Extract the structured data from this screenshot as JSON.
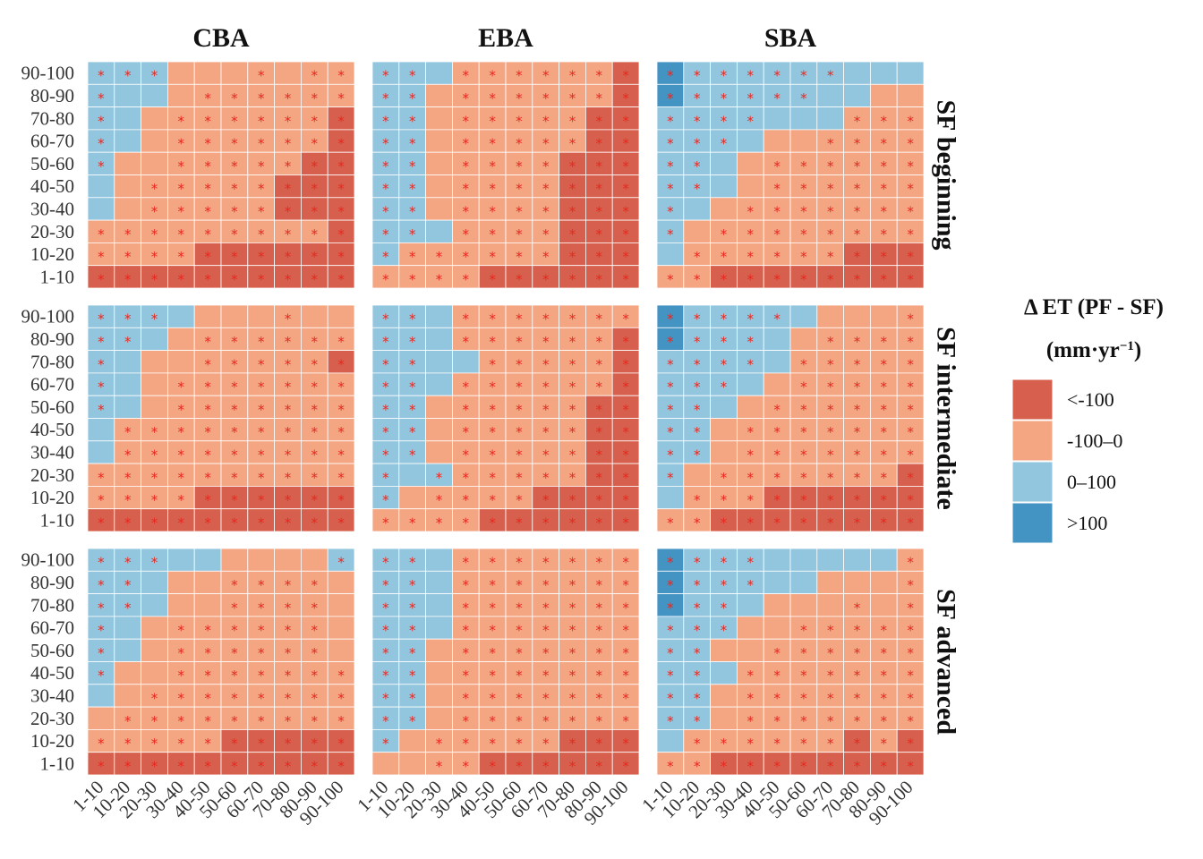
{
  "chart_data": {
    "type": "heatmap",
    "columns": [
      "CBA",
      "EBA",
      "SBA"
    ],
    "rows": [
      "SF beginning",
      "SF intermediate",
      "SF advanced"
    ],
    "x_categories": [
      "1-10",
      "10-20",
      "20-30",
      "30-40",
      "40-50",
      "50-60",
      "60-70",
      "70-80",
      "80-90",
      "90-100"
    ],
    "y_categories": [
      "90-100",
      "80-90",
      "70-80",
      "60-70",
      "50-60",
      "40-50",
      "30-40",
      "20-30",
      "10-20",
      "1-10"
    ],
    "legend": {
      "title_line1": "Δ ET (PF - SF)",
      "title_line2": "(mm·yr",
      "title_sup": "−1",
      "title_close": ")",
      "bins": [
        {
          "label": "<-100",
          "color": "#d6604d"
        },
        {
          "label": "-100–0",
          "color": "#f4a582"
        },
        {
          "label": "0–100",
          "color": "#92c5de"
        },
        {
          "label": ">100",
          "color": "#4393c3"
        }
      ]
    },
    "significance_marker": "*",
    "encoding_note": "grid rows listed from 90-100 (top) to 1-10 (bottom); digit = bin index (0:<-100, 1:-100–0, 2:0–100, 3:>100); sig 1 = marked with *",
    "panels": [
      {
        "column": "CBA",
        "row": "SF beginning",
        "bins": [
          "2221111111",
          "2221111111",
          "2211111110",
          "2211111110",
          "2111111100",
          "2111111000",
          "2111111000",
          "1111111110",
          "1111000000",
          "0000000000"
        ],
        "sig": [
          "1110001011",
          "1000111111",
          "1001111111",
          "1001111111",
          "1001111111",
          "0011111111",
          "0011111111",
          "1111111111",
          "1111111111",
          "1111111111"
        ]
      },
      {
        "column": "EBA",
        "row": "SF beginning",
        "bins": [
          "2221111110",
          "2211111110",
          "2211111100",
          "2211111100",
          "2211111000",
          "2211111000",
          "2211111000",
          "2221111000",
          "2111111000",
          "1111000000"
        ],
        "sig": [
          "1101111111",
          "1101111111",
          "1101111111",
          "1101111111",
          "1101111111",
          "1101111111",
          "1101111111",
          "1101111111",
          "1111111111",
          "1111111111"
        ]
      },
      {
        "column": "SBA",
        "row": "SF beginning",
        "bins": [
          "3222222222",
          "3222222211",
          "2222222111",
          "2222111111",
          "2221111111",
          "2221111111",
          "2211111111",
          "2111111111",
          "2111111000",
          "1100000000"
        ],
        "sig": [
          "1111111000",
          "1111110000",
          "1111000111",
          "1110001111",
          "1100111111",
          "1100111111",
          "1001111111",
          "1011111111",
          "0111111111",
          "1111111111"
        ]
      },
      {
        "column": "CBA",
        "row": "SF intermediate",
        "bins": [
          "2222111111",
          "2221111111",
          "2211111110",
          "2211111111",
          "2211111111",
          "2111111111",
          "2111111111",
          "1111111111",
          "1111000000",
          "0000000000"
        ],
        "sig": [
          "1110000100",
          "1100111111",
          "1000111111",
          "1001111111",
          "1001111111",
          "0111111111",
          "0111111111",
          "1111111111",
          "1111111111",
          "1111111111"
        ]
      },
      {
        "column": "EBA",
        "row": "SF intermediate",
        "bins": [
          "2221111111",
          "2221111110",
          "2222111110",
          "2221111110",
          "2211111100",
          "2211111100",
          "2211111100",
          "2221111100",
          "2111110000",
          "1111000000"
        ],
        "sig": [
          "1101111111",
          "1101111111",
          "1100111111",
          "1101111111",
          "1101111111",
          "1101111111",
          "1101111111",
          "1011111111",
          "1011111111",
          "1111111111"
        ]
      },
      {
        "column": "SBA",
        "row": "SF intermediate",
        "bins": [
          "3222221111",
          "3222211111",
          "2222211111",
          "2222111111",
          "2221111111",
          "2211111111",
          "2211111111",
          "2111111110",
          "2111000000",
          "1100000000"
        ],
        "sig": [
          "1111100001",
          "1111001111",
          "1111011111",
          "1110011111",
          "1100111111",
          "1101111111",
          "1101111111",
          "1011111111",
          "0111111111",
          "1111111111"
        ]
      },
      {
        "column": "CBA",
        "row": "SF advanced",
        "bins": [
          "2222211112",
          "2221111111",
          "2221111111",
          "2211111111",
          "2211111111",
          "2111111111",
          "2111111111",
          "1111111111",
          "1111100000",
          "0000000000"
        ],
        "sig": [
          "1110000001",
          "1100011110",
          "1100011110",
          "1001111110",
          "1001111110",
          "1001111111",
          "0011111111",
          "0111111111",
          "1111111111",
          "1111111111"
        ]
      },
      {
        "column": "EBA",
        "row": "SF advanced",
        "bins": [
          "2221111111",
          "2221111111",
          "2221111111",
          "2221111111",
          "2211111111",
          "2211111111",
          "2211111111",
          "2211111111",
          "2111111000",
          "1111000000"
        ],
        "sig": [
          "1101111111",
          "1101111111",
          "1101111111",
          "1101111111",
          "1101111111",
          "1101111111",
          "1101111111",
          "1101111111",
          "1011111111",
          "0011111111"
        ]
      },
      {
        "column": "SBA",
        "row": "SF advanced",
        "bins": [
          "3222222221",
          "3222221111",
          "3222111111",
          "2221111111",
          "2211111111",
          "2221111111",
          "2211111111",
          "2211111111",
          "2111111010",
          "1100000000"
        ],
        "sig": [
          "1111000001",
          "1111000001",
          "1110000101",
          "1110011111",
          "1100111111",
          "1101111111",
          "1101111111",
          "1101111111",
          "0111111111",
          "1111111111"
        ]
      }
    ]
  }
}
